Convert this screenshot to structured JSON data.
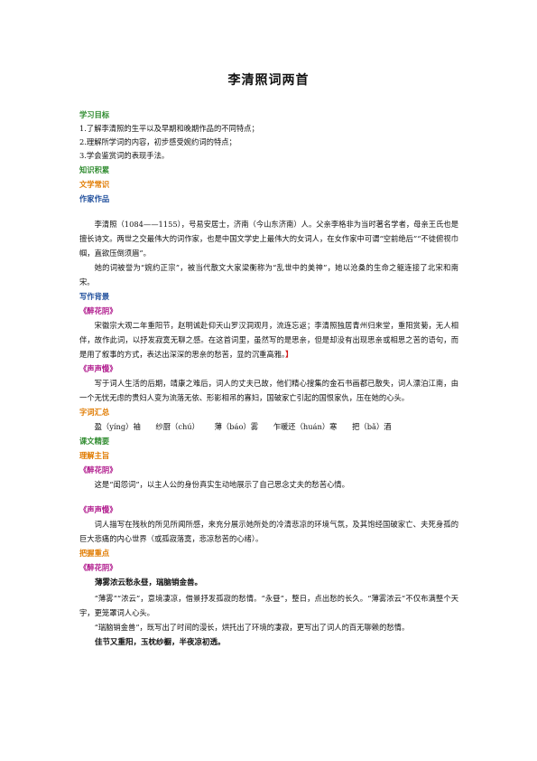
{
  "title": "李清照词两首",
  "sections": {
    "learning_goals": {
      "heading": "学习目标",
      "items": [
        "1.了解李清照的生平以及早期和晚期作品的不同特点；",
        "2.理解所学词的内容，初步感受婉约词的特点；",
        "3.学会鉴赏词的表现手法。"
      ]
    },
    "knowledge": {
      "heading": "知识积累"
    },
    "literature": {
      "heading": "文学常识"
    },
    "author": {
      "heading": "作家作品",
      "para1": "李清照（1084——1155），号易安居士，济南（今山东济南）人。父亲李格非为当时著名学者，母亲王氏也是擅长诗文。两世之交最伟大的词作家，也是中国文学史上最伟大的女词人，在女作家中可谓“空前绝后”“不徒俯视巾帼，直欲压倒须眉”。",
      "para2": "她的词被誉为“婉约正宗”，被当代散文大家梁衡称为“乱世中的美神”，她以沧桑的生命之躯连接了北宋和南宋。"
    },
    "background": {
      "heading": "写作背景",
      "poem1": "《醉花阴》",
      "para1": "宋徽宗大观二年重阳节，赵明诚赴仰天山罗汉洞观月，流连忘返；李清照独居青州归来堂，重阳赏菊，无人相伴，故作此词，以抒发寂寞无聊之感。在这首词里，虽然写的是思亲，但是却没有出现思亲或相思之苦的语句，而是用了叙事的方式，表达出深深的思亲的愁苦，显的沉重高雅。",
      "bracket": "】",
      "poem2": "《声声慢》",
      "para2": "写于词人生活的后期，靖康之难后，词人的丈夫已故，他们精心搜集的金石书画都已散失，词人漂泊江南，由一个无忧无虑的贵妇人变为流落无依、形影相吊的寡妇，国破家亡引起的国恨家仇，压在她的心头。"
    },
    "vocab": {
      "heading": "字词汇总",
      "items": [
        "盈（yíng）袖",
        "纱厨（chú）",
        "薄（báo）雾",
        "乍暖还（huán）寒",
        "把（bǎ）酒"
      ]
    },
    "study": {
      "heading": "课文精要"
    },
    "theme": {
      "heading": "理解主旨",
      "poem1": "《醉花阴》",
      "para1": "这是“闺怨词”，以主人公的身份真实生动地展示了自己思念丈夫的愁苦心情。",
      "poem2": "《声声慢》",
      "para2": "词人描写在残秋的所见所闻所感，来充分展示她所处的冷清悲凉的环境气氛，及其饱经国破家亡、夫死身孤的巨大悲痛的内心世界（或孤寂落寞，悲凉愁苦的心绪）。"
    },
    "key_points": {
      "heading": "把握重点",
      "poem1": "《醉花阴》",
      "line1": "薄雾浓云愁永昼，瑞脑销金兽。",
      "para1": "“薄雾”“浓云”，意境凄凉，借景抒发孤寂的愁情。“永昼”，整日，点出愁的长久。“薄雾浓云”不仅布满整个天宇，更笼罩词人心头。",
      "para2": "“瑞脑销金兽”，既写出了时间的漫长，烘托出了环境的凄寂，更写出了词人的百无聊赖的愁情。",
      "line2": "佳节又重阳，玉枕纱橱，半夜凉初透。"
    }
  }
}
